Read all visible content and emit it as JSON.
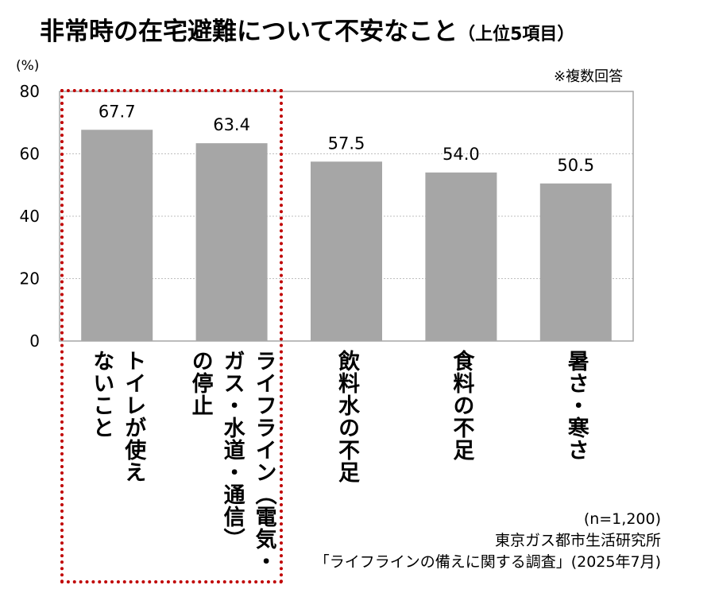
{
  "title": "非常時の在宅避難について不安なこと",
  "title_sub": "（上位5項目）",
  "unit": "(%)",
  "note": "※複数回答",
  "chart_data": {
    "type": "bar",
    "categories": [
      "トイレが使えないこと",
      "ライフライン（電気・ガス・水道・通信）の停止",
      "飲料水の不足",
      "食料の不足",
      "暑さ・寒さ"
    ],
    "category_lines": [
      [
        "トイレが使え",
        "ないこと"
      ],
      [
        "ライフライン（電気・",
        "ガス・水道・通信）",
        "の停止"
      ],
      [
        "飲料水の不足"
      ],
      [
        "食料の不足"
      ],
      [
        "暑さ・寒さ"
      ]
    ],
    "values": [
      67.7,
      63.4,
      57.5,
      54.0,
      50.5
    ],
    "value_labels": [
      "67.7",
      "63.4",
      "57.5",
      "54.0",
      "50.5"
    ],
    "ylim": [
      0,
      80
    ],
    "yticks": [
      0,
      20,
      40,
      60,
      80
    ],
    "grid": true,
    "bar_color": "#a6a6a6",
    "highlight_color": "#c00000",
    "highlighted_categories": [
      0,
      1
    ]
  },
  "source": {
    "sample": "(n=1,200)",
    "org": "東京ガス都市生活研究所",
    "survey": "「ライフラインの備えに関する調査」(2025年7月)"
  }
}
